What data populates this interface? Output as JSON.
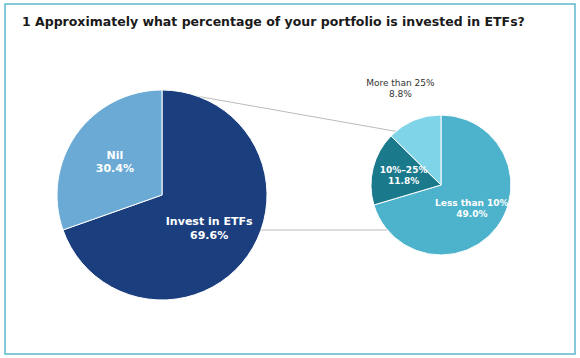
{
  "chart_data": [
    {
      "type": "pie",
      "title": "1 Approximately what percentage of your portfolio is invested in ETFs?",
      "categories": [
        "Invest in ETFs",
        "Nil"
      ],
      "values": [
        69.6,
        30.4
      ],
      "value_labels": [
        "69.6%",
        "30.4%"
      ],
      "colors": [
        "#1b3f7e",
        "#6aaad4"
      ],
      "data_labels": true
    },
    {
      "type": "pie",
      "categories": [
        "Less than 10%",
        "10%–25%",
        "More than 25%"
      ],
      "values": [
        49.0,
        11.8,
        8.8
      ],
      "value_labels": [
        "49.0%",
        "11.8%",
        "8.8%"
      ],
      "colors": [
        "#4db3cc",
        "#1a7a8c",
        "#7fd4e8"
      ],
      "data_labels": true
    }
  ]
}
